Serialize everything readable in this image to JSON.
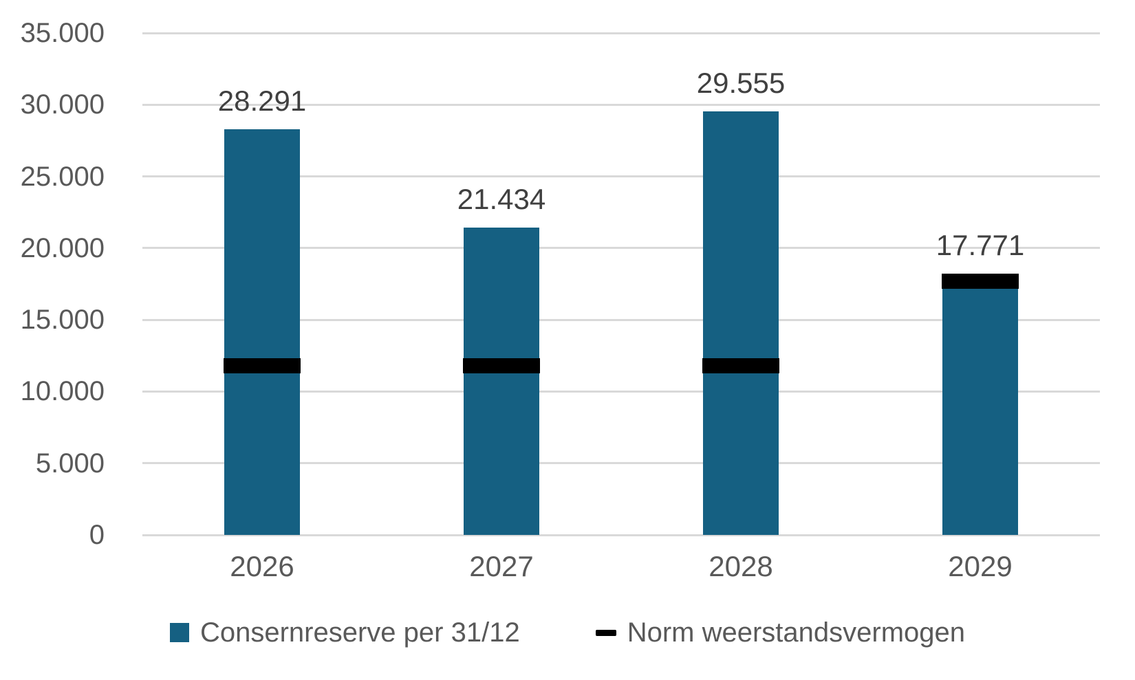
{
  "chart_data": {
    "type": "bar",
    "title": "",
    "xlabel": "",
    "ylabel": "",
    "categories": [
      "2026",
      "2027",
      "2028",
      "2029"
    ],
    "series": [
      {
        "name": "Consernreserve per 31/12",
        "type": "bar",
        "color": "#156082",
        "values": [
          28291,
          21434,
          29555,
          17771
        ],
        "data_labels": [
          "28.291",
          "21.434",
          "29.555",
          "17.771"
        ]
      },
      {
        "name": "Norm weerstandsvermogen",
        "type": "dash-marker",
        "color": "#000000",
        "values": [
          11800,
          11800,
          11800,
          17700
        ]
      }
    ],
    "ylim": [
      0,
      35000
    ],
    "ytick_step": 5000,
    "ytick_labels": [
      "0",
      "5.000",
      "10.000",
      "15.000",
      "20.000",
      "25.000",
      "30.000",
      "35.000"
    ],
    "grid": true,
    "legend_position": "bottom",
    "colors": {
      "background": "#ffffff",
      "gridline": "#d9d9d9",
      "axis_text": "#595959",
      "data_label_text": "#404040"
    }
  }
}
